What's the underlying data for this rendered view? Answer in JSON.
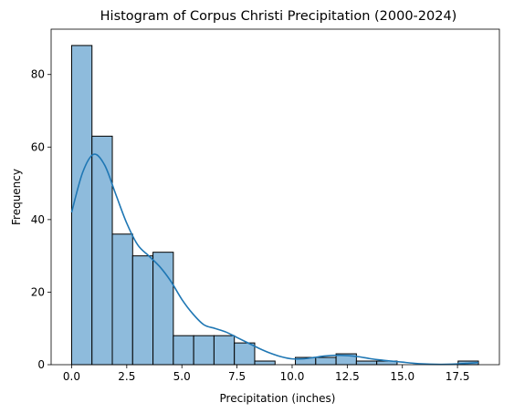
{
  "chart_data": {
    "type": "bar",
    "title": "Histogram of Corpus Christi Precipitation (2000-2024)",
    "xlabel": "Precipitation (inches)",
    "ylabel": "Frequency",
    "xlim": [
      -0.93,
      19.4
    ],
    "ylim": [
      0,
      92.5
    ],
    "x_ticks": [
      0,
      2.5,
      5,
      7.5,
      10,
      12.5,
      15,
      17.5
    ],
    "x_tick_labels": [
      "0.0",
      "2.5",
      "5.0",
      "7.5",
      "10.0",
      "12.5",
      "15.0",
      "17.5"
    ],
    "y_ticks": [
      0,
      20,
      40,
      60,
      80
    ],
    "y_tick_labels": [
      "0",
      "20",
      "40",
      "60",
      "80"
    ],
    "bin_width": 0.9225,
    "bins_start": [
      0,
      0.9225,
      1.845,
      2.7675,
      3.69,
      4.6125,
      5.535,
      6.4575,
      7.38,
      8.3025,
      9.225,
      10.1475,
      11.07,
      11.9925,
      12.915,
      13.8375,
      14.76,
      15.6825,
      16.605,
      17.5275
    ],
    "counts": [
      88,
      63,
      36,
      30,
      31,
      8,
      8,
      8,
      6,
      1,
      0,
      2,
      2,
      3,
      1,
      1,
      0,
      0,
      0,
      1
    ],
    "kde": {
      "x": [
        0,
        0.5,
        1.0,
        1.5,
        2.0,
        2.5,
        3.0,
        3.5,
        4.0,
        4.5,
        5.0,
        5.5,
        6.0,
        6.5,
        7.0,
        7.5,
        8.0,
        8.5,
        9.0,
        9.5,
        10.0,
        10.5,
        11.0,
        11.5,
        12.0,
        12.5,
        13.0,
        13.5,
        14.0,
        14.5,
        15.0,
        15.5,
        16.0,
        16.5,
        17.0,
        17.5,
        18.0,
        18.45
      ],
      "y": [
        42,
        53,
        58,
        55,
        47,
        39,
        33,
        30,
        27,
        23,
        18,
        14,
        11,
        10,
        9,
        7.5,
        6,
        4.5,
        3.2,
        2.2,
        1.6,
        1.6,
        2.0,
        2.4,
        2.6,
        2.5,
        2.2,
        1.7,
        1.3,
        1.0,
        0.7,
        0.4,
        0.2,
        0.1,
        0.1,
        0.2,
        0.4,
        0.6
      ]
    },
    "colors": {
      "bar_fill": "#8ebbdc",
      "bar_edge": "#000000",
      "kde_line": "#1f77b4"
    },
    "grid": false,
    "legend": "none"
  }
}
